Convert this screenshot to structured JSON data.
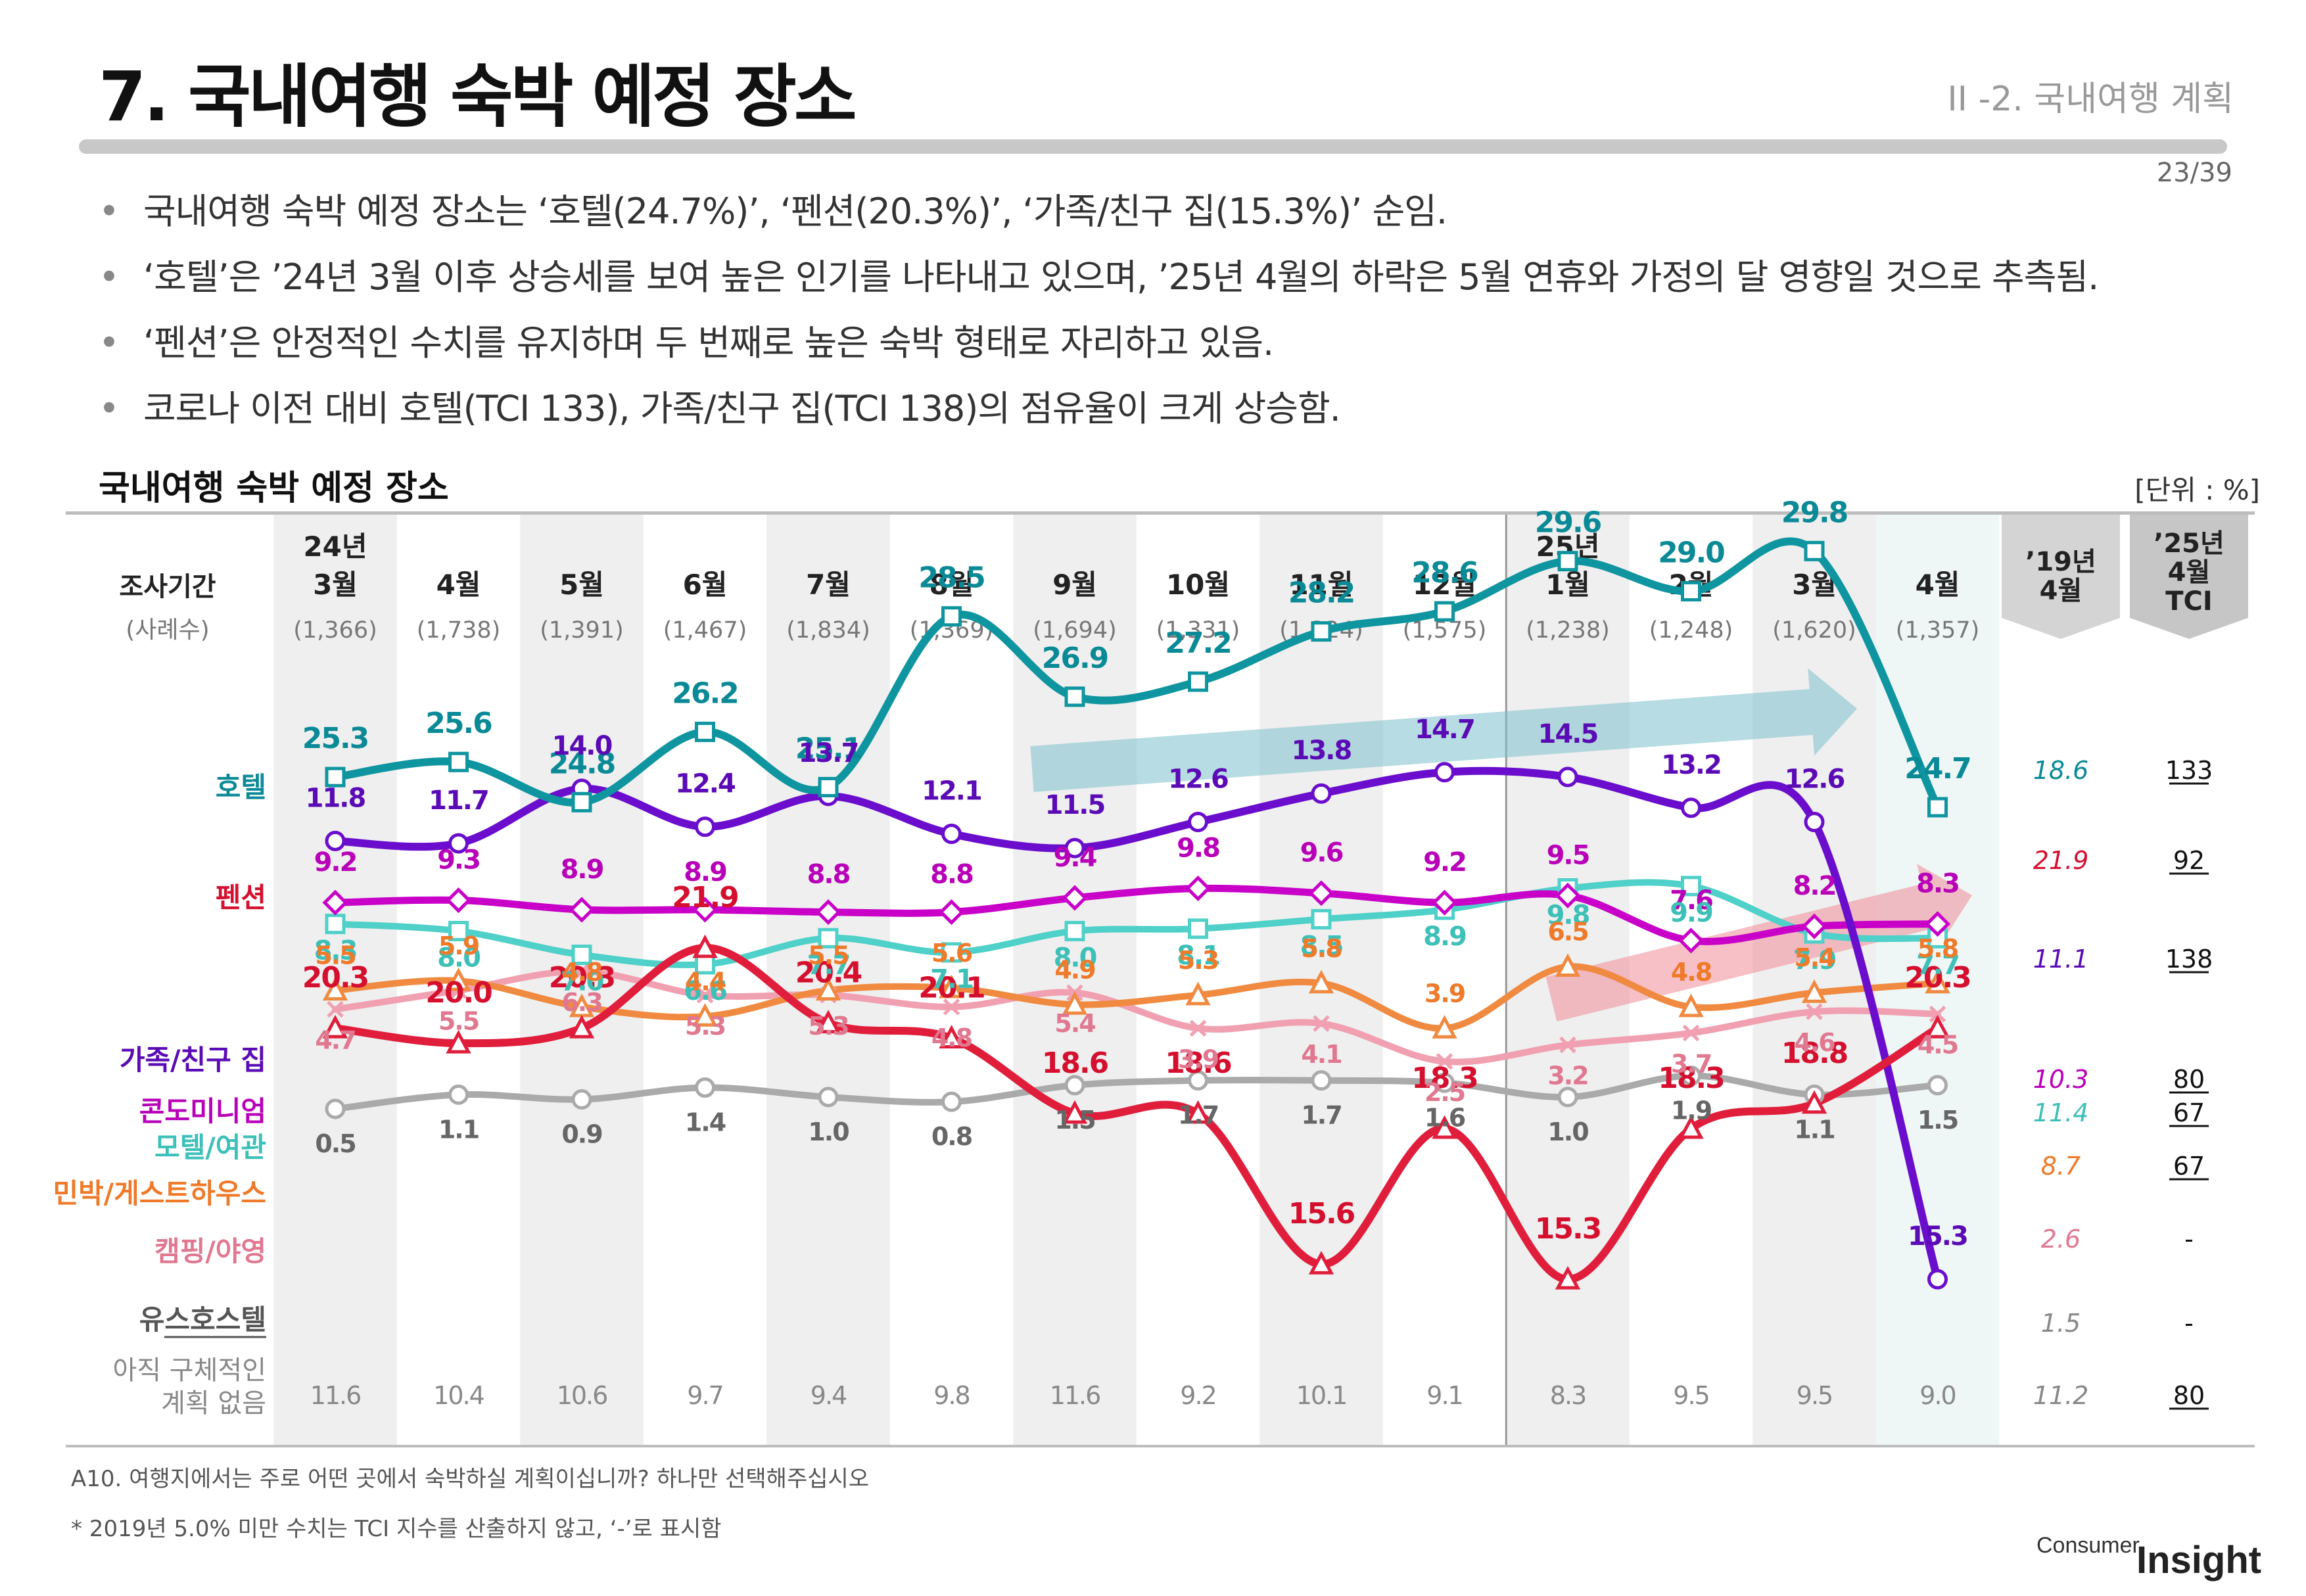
{
  "header": {
    "title": "7. 국내여행 숙박 예정 장소",
    "section": "II -2. 국내여행 계획",
    "page": "23/39"
  },
  "bullets": [
    "국내여행 숙박 예정 장소는 ‘호텔(24.7%)’, ‘펜션(20.3%)’, ‘가족/친구 집(15.3%)’ 순임.",
    "‘호텔’은 ’24년 3월 이후 상승세를 보여 높은 인기를 나타내고 있으며, ’25년 4월의 하락은 5월 연휴와 가정의 달 영향일 것으로 추측됨.",
    "‘펜션’은 안정적인 수치를 유지하며 두 번째로 높은 숙박 형태로 자리하고 있음.",
    "코로나 이전 대비 호텔(TCI 133), 가족/친구 집(TCI 138)의 점유율이 크게 상승함."
  ],
  "chart_title": "국내여행 숙박 예정 장소",
  "unit": "[단위 : %]",
  "footer": {
    "question": "A10. 여행지에서는 주로 어떤 곳에서 숙박하실 계획이십니까? 하나만 선택해주십시오",
    "footnote": "* 2019년 5.0% 미만 수치는 TCI 지수를 산출하지 않고, ‘-’로 표시함",
    "logo_prefix": "Consumer",
    "logo_main": "Insight"
  },
  "chart_data": {
    "type": "line",
    "row_header": {
      "period": "조사기간",
      "sample": "(사례수)"
    },
    "periods": [
      {
        "year": "24년",
        "month": "3월",
        "n": "(1,366)"
      },
      {
        "year": "",
        "month": "4월",
        "n": "(1,738)"
      },
      {
        "year": "",
        "month": "5월",
        "n": "(1,391)"
      },
      {
        "year": "",
        "month": "6월",
        "n": "(1,467)"
      },
      {
        "year": "",
        "month": "7월",
        "n": "(1,834)"
      },
      {
        "year": "",
        "month": "8월",
        "n": "(1,369)"
      },
      {
        "year": "",
        "month": "9월",
        "n": "(1,694)"
      },
      {
        "year": "",
        "month": "10월",
        "n": "(1,331)"
      },
      {
        "year": "",
        "month": "11월",
        "n": "(1,324)"
      },
      {
        "year": "",
        "month": "12월",
        "n": "(1,575)"
      },
      {
        "year": "25년",
        "month": "1월",
        "n": "(1,238)"
      },
      {
        "year": "",
        "month": "2월",
        "n": "(1,248)"
      },
      {
        "year": "",
        "month": "3월",
        "n": "(1,620)"
      },
      {
        "year": "",
        "month": "4월",
        "n": "(1,357)"
      }
    ],
    "compare_headers": [
      "’19년\n4월",
      "’25년\n4월\nTCI"
    ],
    "series": [
      {
        "name": "호텔",
        "color": "#0f95a0",
        "marker": "square",
        "values": [
          25.3,
          25.6,
          24.8,
          26.2,
          25.1,
          28.5,
          26.9,
          27.2,
          28.2,
          28.6,
          29.6,
          29.0,
          29.8,
          24.7
        ],
        "y2019": "18.6",
        "tci": "133"
      },
      {
        "name": "펜션",
        "color": "#e01e3c",
        "marker": "triangle",
        "values": [
          20.3,
          20.0,
          20.3,
          21.9,
          20.4,
          20.1,
          18.6,
          18.6,
          15.6,
          18.3,
          15.3,
          18.3,
          18.8,
          20.3
        ],
        "y2019": "21.9",
        "tci": "92"
      },
      {
        "name": "가족/친구 집",
        "color": "#6a0dcc",
        "marker": "circle",
        "values": [
          11.8,
          11.7,
          14.0,
          12.4,
          13.7,
          12.1,
          11.5,
          12.6,
          13.8,
          14.7,
          14.5,
          13.2,
          12.6,
          15.3
        ],
        "y2019": "11.1",
        "tci": "138"
      },
      {
        "name": "콘도미니엄",
        "color": "#c800c8",
        "marker": "diamond",
        "values": [
          9.2,
          9.3,
          8.9,
          8.9,
          8.8,
          8.8,
          9.4,
          9.8,
          9.6,
          9.2,
          9.5,
          7.6,
          8.2,
          8.3
        ],
        "y2019": "10.3",
        "tci": "80"
      },
      {
        "name": "모텔/여관",
        "color": "#4fd0c8",
        "marker": "square",
        "values": [
          8.3,
          8.0,
          7.0,
          6.6,
          7.7,
          7.1,
          8.0,
          8.1,
          8.5,
          8.9,
          9.8,
          9.9,
          7.9,
          7.7
        ],
        "y2019": "11.4",
        "tci": "67"
      },
      {
        "name": "민박/게스트하우스",
        "color": "#f08a40",
        "marker": "triangle",
        "values": [
          5.5,
          5.9,
          4.8,
          4.4,
          5.5,
          5.6,
          4.9,
          5.3,
          5.8,
          3.9,
          6.5,
          4.8,
          5.4,
          5.8
        ],
        "y2019": "8.7",
        "tci": "67"
      },
      {
        "name": "캠핑/야영",
        "color": "#f0a0b0",
        "marker": "x",
        "values": [
          4.7,
          5.5,
          6.3,
          5.3,
          5.3,
          4.8,
          5.4,
          3.9,
          4.1,
          2.5,
          3.2,
          3.7,
          4.6,
          4.5
        ],
        "y2019": "2.6",
        "tci": "-"
      },
      {
        "name": "유스호스텔",
        "color": "#aaaaaa",
        "marker": "circle",
        "values": [
          0.5,
          1.1,
          0.9,
          1.4,
          1.0,
          0.8,
          1.5,
          1.7,
          1.7,
          1.6,
          1.0,
          1.9,
          1.1,
          1.5
        ],
        "y2019": "1.5",
        "tci": "-"
      }
    ],
    "no_plan_row": {
      "name": "아직 구체적인\n계획 없음",
      "values": [
        11.6,
        10.4,
        10.6,
        9.7,
        9.4,
        9.8,
        11.6,
        9.2,
        10.1,
        9.1,
        8.3,
        9.5,
        9.5,
        9.0
      ],
      "y2019": "11.2",
      "tci": "80"
    }
  }
}
